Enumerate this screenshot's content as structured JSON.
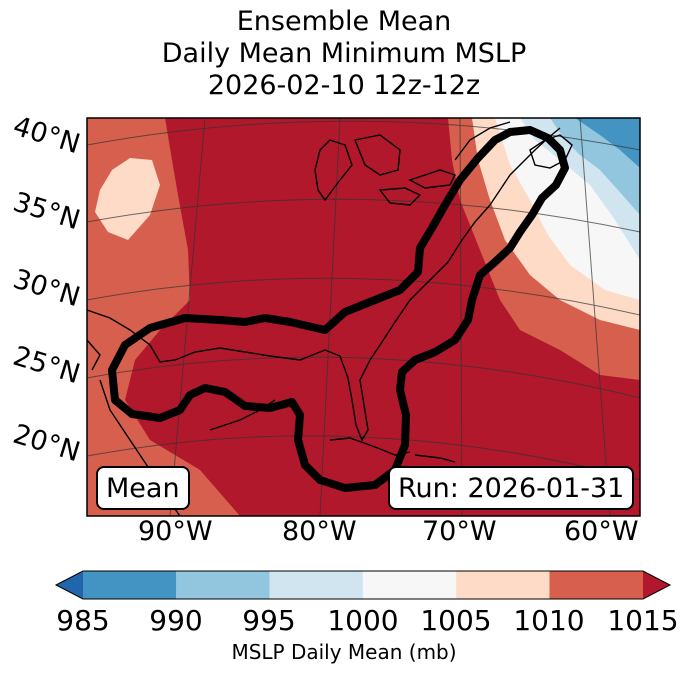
{
  "figure": {
    "title_line1": "Ensemble Mean",
    "title_line2": "Daily Mean Minimum MSLP",
    "title_line3": "2026-02-10 12z-12z"
  },
  "map": {
    "lat_labels": [
      "40°N",
      "35°N",
      "30°N",
      "25°N",
      "20°N"
    ],
    "lon_labels": [
      "90°W",
      "80°W",
      "70°W",
      "60°W"
    ],
    "mean_badge": "Mean",
    "run_badge": "Run: 2026-01-31"
  },
  "colorbar": {
    "ticks": [
      "985",
      "990",
      "995",
      "1000",
      "1005",
      "1010",
      "1015"
    ],
    "label": "MSLP Daily Mean (mb)",
    "colors": [
      "#2166ac",
      "#4393c3",
      "#92c5de",
      "#d1e5f0",
      "#f7f7f7",
      "#fddbc7",
      "#d6604d",
      "#b2182b"
    ]
  }
}
